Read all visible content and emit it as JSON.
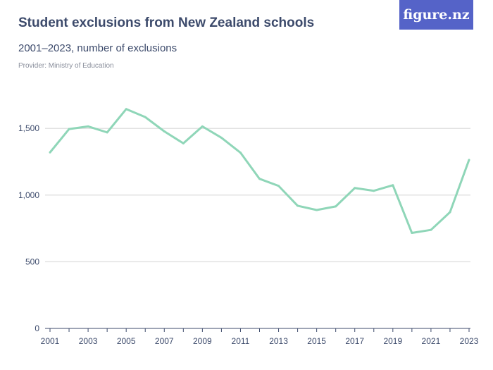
{
  "header": {
    "title": "Student exclusions from New Zealand schools",
    "subtitle": "2001–2023, number of exclusions",
    "provider": "Provider: Ministry of Education",
    "logo": "figure.nz"
  },
  "colors": {
    "line": "#8fd6b8",
    "logo_bg": "#5563c8",
    "text": "#3c4a6b"
  },
  "chart_data": {
    "type": "line",
    "x": [
      2001,
      2002,
      2003,
      2004,
      2005,
      2006,
      2007,
      2008,
      2009,
      2010,
      2011,
      2012,
      2013,
      2014,
      2015,
      2016,
      2017,
      2018,
      2019,
      2020,
      2021,
      2022,
      2023
    ],
    "values": [
      1320,
      1495,
      1515,
      1470,
      1645,
      1585,
      1478,
      1388,
      1515,
      1430,
      1318,
      1122,
      1069,
      920,
      888,
      915,
      1053,
      1032,
      1074,
      716,
      739,
      872,
      1264
    ],
    "ylim": [
      0,
      1700
    ],
    "yticks": [
      0,
      500,
      1000,
      1500
    ],
    "ytick_labels": [
      "0",
      "500",
      "1,000",
      "1,500"
    ],
    "xtick_labels": [
      "2001",
      "2003",
      "2005",
      "2007",
      "2009",
      "2011",
      "2013",
      "2015",
      "2017",
      "2019",
      "2021",
      "2023"
    ],
    "grid": true,
    "xlabel": "",
    "ylabel": ""
  }
}
